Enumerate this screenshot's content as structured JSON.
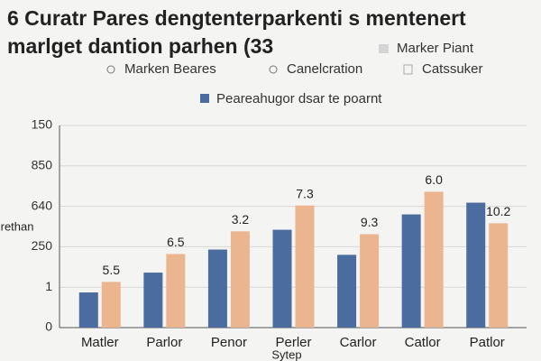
{
  "chart_data": {
    "type": "bar",
    "title": [
      "6 Curatr Pares dengtenterparkenti s mentenert",
      "marlget dantion parhen (33"
    ],
    "y_label": "Grethan",
    "x_label": "Sytep",
    "extra_legend": [
      "Marker Piant",
      "Marken Beares",
      "Canelcration",
      "Catssuker"
    ],
    "categories": [
      "Matler",
      "Parlor",
      "Penor",
      "Perler",
      "Carlor",
      "Catlor",
      "Patlor"
    ],
    "series": [
      {
        "name": "Peareahugor dsar te poarnt",
        "color": "#4a6c9e",
        "values": [
          0.87,
          1.36,
          1.93,
          2.42,
          1.8,
          2.8,
          3.09
        ]
      },
      {
        "color": "#eab58f",
        "values": [
          1.13,
          1.82,
          2.38,
          3.02,
          2.31,
          3.36,
          2.58
        ]
      }
    ],
    "annotations": [
      "5.5",
      "6.5",
      "3.2",
      "7.3",
      "9.3",
      "6.0",
      "10.2"
    ],
    "ylim": [
      0,
      5
    ],
    "yticks": [
      0,
      1,
      {
        "value": 2,
        "label": "250"
      },
      {
        "value": 3,
        "label": "640"
      },
      {
        "value": 4,
        "label": "850"
      },
      {
        "value": 5,
        "label": "150"
      }
    ],
    "grid": true
  }
}
